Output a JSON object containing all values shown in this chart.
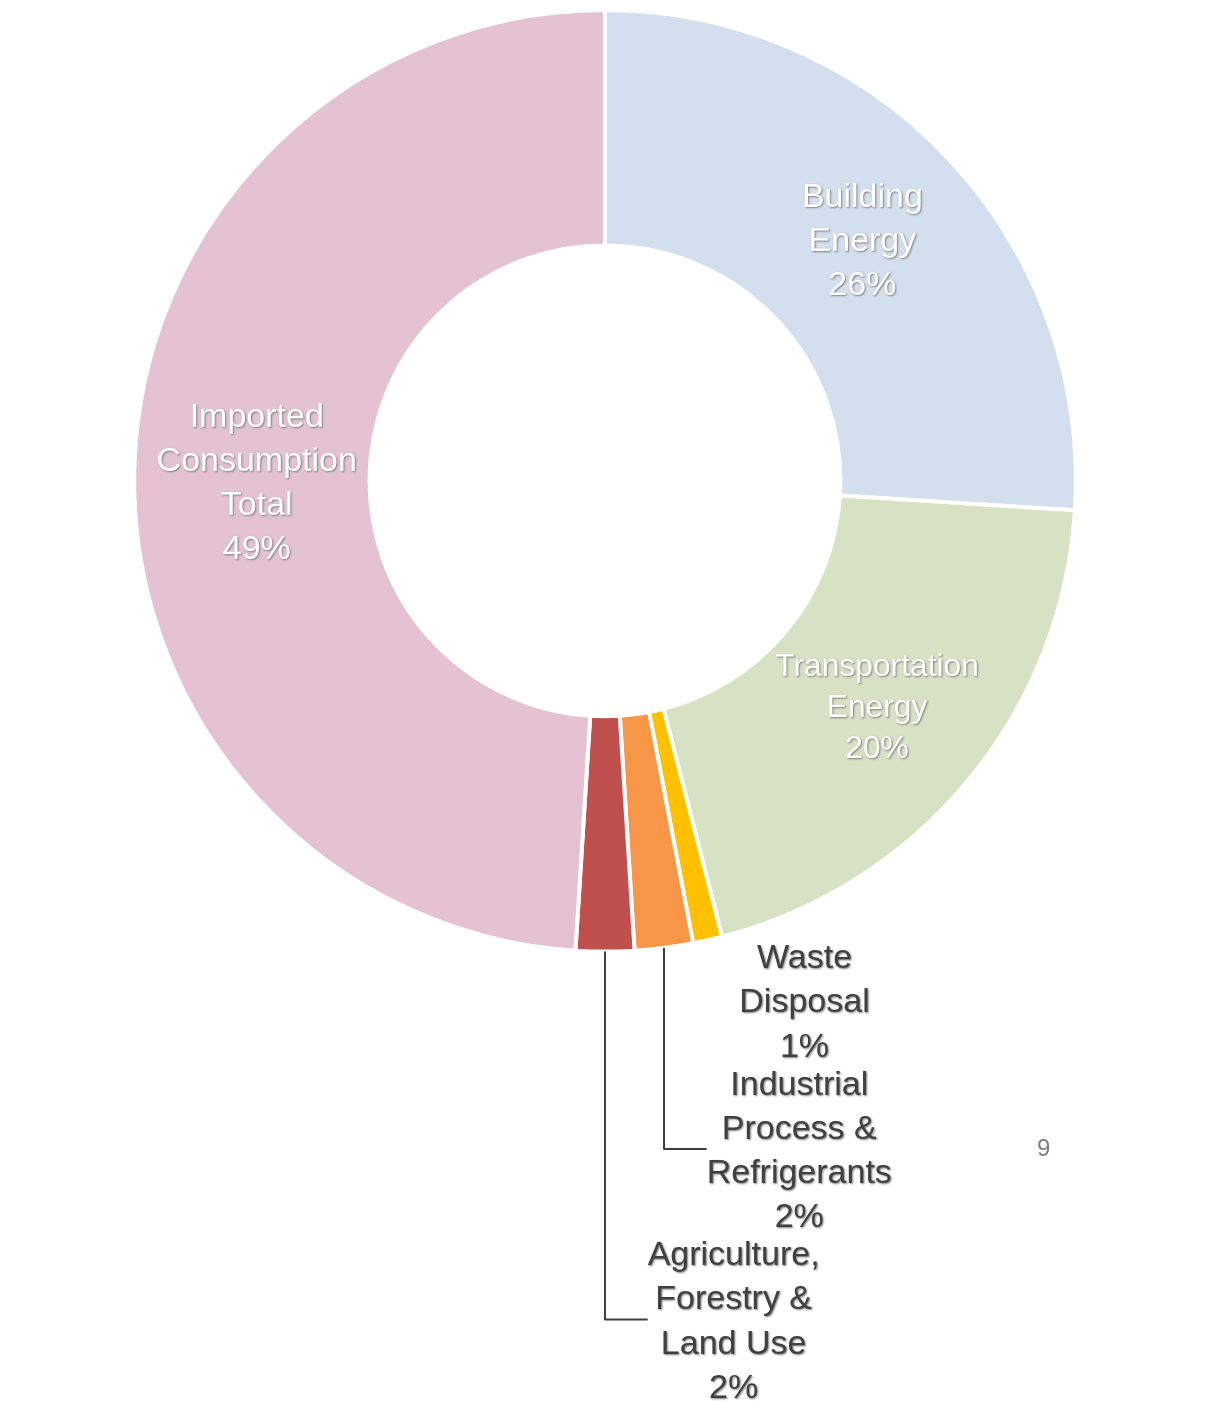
{
  "chart_data": {
    "type": "donut",
    "categories": [
      "Building\nEnergy",
      "Transportation\nEnergy",
      "Waste\nDisposal",
      "Industrial\nProcess &\nRefrigerants",
      "Agriculture,\nForestry &\nLand Use",
      "Imported\nConsumption\nTotal"
    ],
    "values": [
      26,
      20,
      1,
      2,
      2,
      49
    ],
    "value_labels": [
      "26%",
      "20%",
      "1%",
      "2%",
      "2%",
      "49%"
    ],
    "colors": [
      "#d3dfee",
      "#d6e2c3",
      "#ffc000",
      "#f79646",
      "#c0504d",
      "#e4c2d2"
    ],
    "legend": false,
    "annotations": [
      "9"
    ]
  }
}
